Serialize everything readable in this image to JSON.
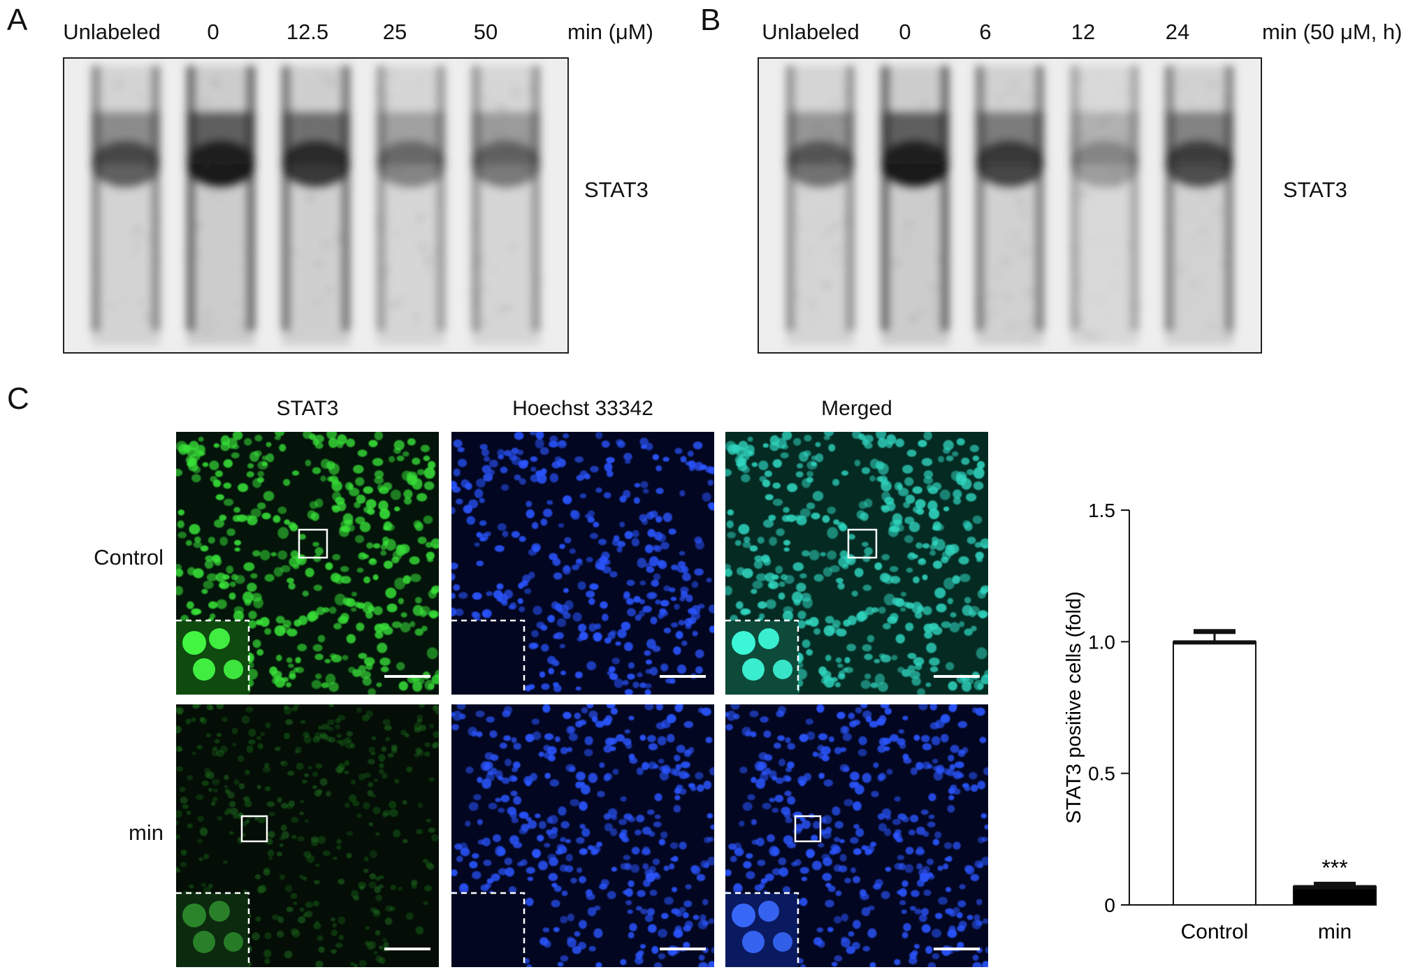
{
  "panel_a": {
    "letter": "A",
    "lanes": [
      "Unlabeled",
      "0",
      "12.5",
      "25",
      "50"
    ],
    "unit": "min (μM)",
    "band": "STAT3",
    "intensity": [
      0.55,
      1.0,
      0.8,
      0.35,
      0.4
    ]
  },
  "panel_b": {
    "letter": "B",
    "lanes": [
      "Unlabeled",
      "0",
      "6",
      "12",
      "24"
    ],
    "unit": "min (50 μM, h)",
    "band": "STAT3",
    "intensity": [
      0.45,
      1.0,
      0.7,
      0.2,
      0.65
    ]
  },
  "panel_c": {
    "letter": "C",
    "columns": [
      "STAT3",
      "Hoechst 33342",
      "Merged"
    ],
    "rows": [
      "Control",
      "min"
    ],
    "colors": {
      "stat3_green": "#38e038",
      "stat3_dim": "#1c6a1c",
      "hoechst_blue": "#2a55ff",
      "merged_cyan": "#30d6c0",
      "background_dark": "#04140a",
      "background_blue": "#030620"
    }
  },
  "chart_data": {
    "type": "bar",
    "categories": [
      "Control",
      "min"
    ],
    "values": [
      1.0,
      0.07
    ],
    "errors": [
      0.04,
      0.01
    ],
    "annotations": [
      "",
      "***"
    ],
    "ylabel": "STAT3 positive cells (fold)",
    "xlabel": "",
    "ylim": [
      0,
      1.5
    ],
    "yticks": [
      "0",
      "0.5",
      "1.0",
      "1.5"
    ],
    "bar_colors": [
      "#ffffff",
      "#000000"
    ]
  }
}
